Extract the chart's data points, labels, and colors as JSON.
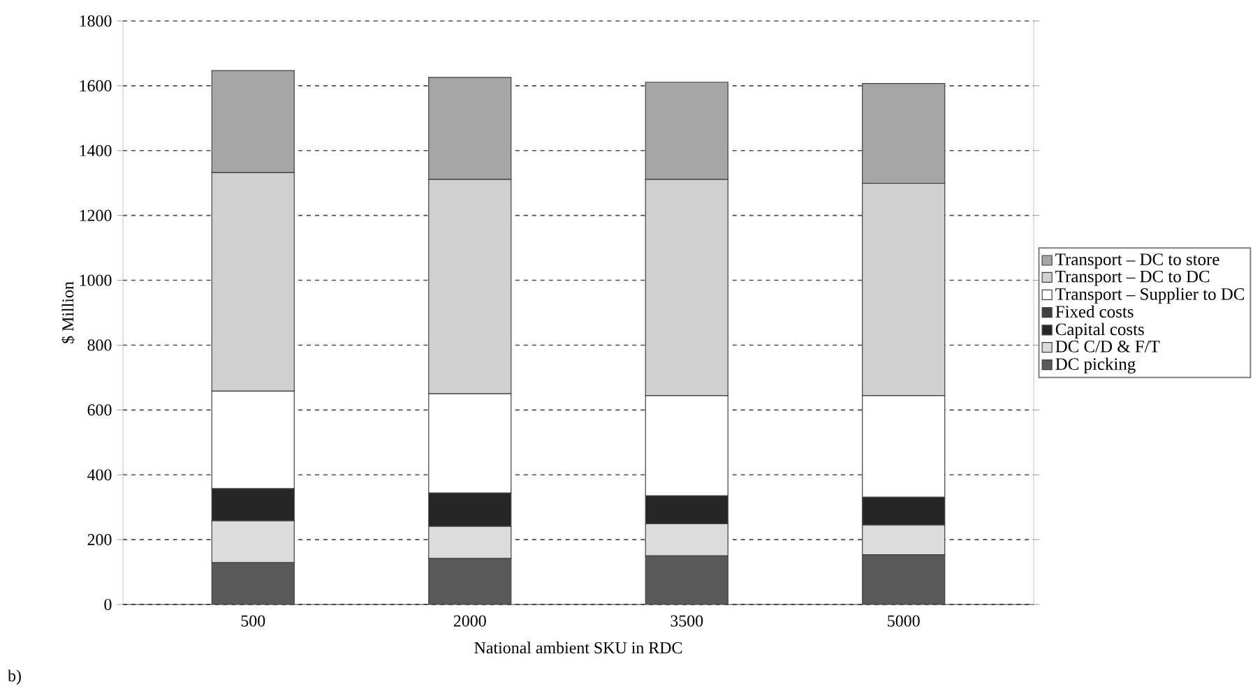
{
  "chart_data": {
    "type": "bar",
    "stacked": true,
    "xlabel": "National ambient SKU in RDC",
    "ylabel": "$ Million",
    "categories": [
      "500",
      "2000",
      "3500",
      "5000"
    ],
    "series": [
      {
        "name": "DC picking",
        "color": "#595959",
        "values": [
          129,
          142,
          150,
          153
        ]
      },
      {
        "name": "DC C/D & F/T",
        "color": "#dcdcdc",
        "values": [
          129,
          99,
          99,
          92
        ]
      },
      {
        "name": "Capital costs",
        "color": "#262626",
        "values": [
          99,
          103,
          86,
          86
        ]
      },
      {
        "name": "Fixed costs",
        "color": "#404040",
        "values": [
          0,
          0,
          0,
          0
        ]
      },
      {
        "name": "Transport – Supplier to DC",
        "color": "#ffffff",
        "values": [
          301,
          306,
          309,
          313
        ]
      },
      {
        "name": "Transport – DC to DC",
        "color": "#d0d0d0",
        "values": [
          674,
          661,
          667,
          655
        ]
      },
      {
        "name": "Transport – DC to store",
        "color": "#a6a6a6",
        "values": [
          315,
          315,
          300,
          308
        ]
      }
    ],
    "ylim": [
      0,
      1800
    ],
    "yticks": [
      0,
      200,
      400,
      600,
      800,
      1000,
      1200,
      1400,
      1600,
      1800
    ],
    "grid": "y",
    "legend": "right",
    "annotations": [
      "b)"
    ]
  }
}
